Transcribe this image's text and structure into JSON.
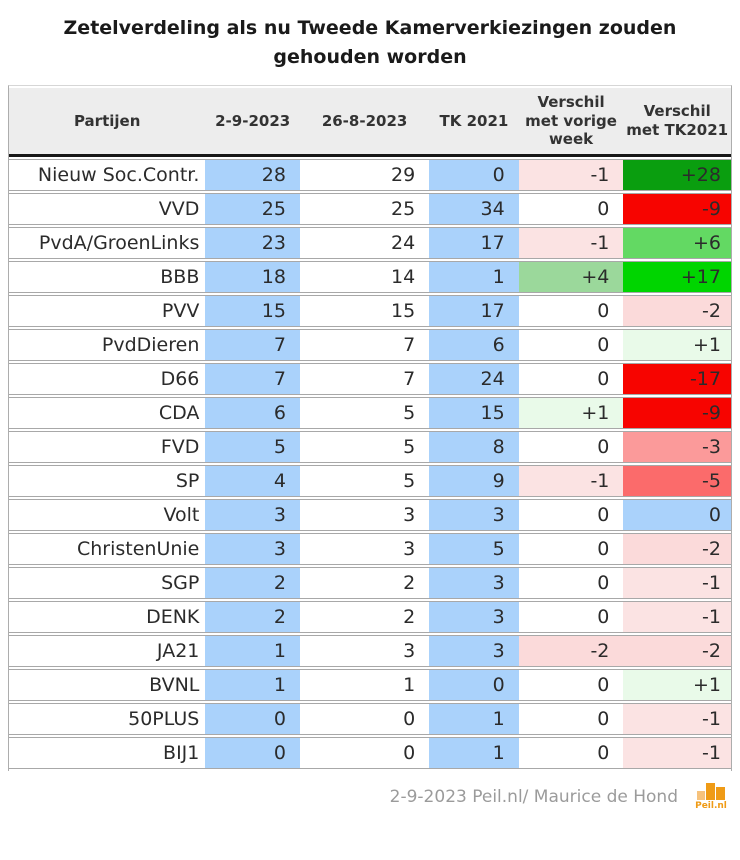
{
  "title": "Zetelverdeling als nu Tweede Kamerverkiezingen zouden gehouden worden",
  "colors": {
    "header_bg": "#ededed",
    "blue_cell": "#aad2fb",
    "green_dark": "#0a9e0f",
    "green_bright": "#00d500",
    "green_med": "#63d963",
    "green_light": "#9bd89b",
    "green_vlight": "#e9fae9",
    "pink_light": "#fbe3e3",
    "pink_med": "#fbdada",
    "salmon": "#fb9a9a",
    "red_med": "#fb6b6b",
    "red": "#f70400",
    "logo_orange": "#ef9b16",
    "logo_light_orange": "#f6c27c"
  },
  "table": {
    "columns": [
      "Partijen",
      "2-9-2023",
      "26-8-2023",
      "TK 2021",
      "Verschil met vorige week",
      "Verschil met TK2021"
    ],
    "rows": [
      {
        "party": "Nieuw Soc.Contr.",
        "seats_2_9": "28",
        "seats_26_8": "29",
        "seats_tk2021": "0",
        "diff_week": "-1",
        "diff_week_bg": "#fbe3e3",
        "diff_tk2021": "+28",
        "diff_tk2021_bg": "#0a9e0f"
      },
      {
        "party": "VVD",
        "seats_2_9": "25",
        "seats_26_8": "25",
        "seats_tk2021": "34",
        "diff_week": "0",
        "diff_week_bg": "#ffffff",
        "diff_tk2021": "-9",
        "diff_tk2021_bg": "#f70400"
      },
      {
        "party": "PvdA/GroenLinks",
        "seats_2_9": "23",
        "seats_26_8": "24",
        "seats_tk2021": "17",
        "diff_week": "-1",
        "diff_week_bg": "#fbe3e3",
        "diff_tk2021": "+6",
        "diff_tk2021_bg": "#63d963"
      },
      {
        "party": "BBB",
        "seats_2_9": "18",
        "seats_26_8": "14",
        "seats_tk2021": "1",
        "diff_week": "+4",
        "diff_week_bg": "#9bd89b",
        "diff_tk2021": "+17",
        "diff_tk2021_bg": "#00d500"
      },
      {
        "party": "PVV",
        "seats_2_9": "15",
        "seats_26_8": "15",
        "seats_tk2021": "17",
        "diff_week": "0",
        "diff_week_bg": "#ffffff",
        "diff_tk2021": "-2",
        "diff_tk2021_bg": "#fbdada"
      },
      {
        "party": "PvdDieren",
        "seats_2_9": "7",
        "seats_26_8": "7",
        "seats_tk2021": "6",
        "diff_week": "0",
        "diff_week_bg": "#ffffff",
        "diff_tk2021": "+1",
        "diff_tk2021_bg": "#e9fae9"
      },
      {
        "party": "D66",
        "seats_2_9": "7",
        "seats_26_8": "7",
        "seats_tk2021": "24",
        "diff_week": "0",
        "diff_week_bg": "#ffffff",
        "diff_tk2021": "-17",
        "diff_tk2021_bg": "#f70400"
      },
      {
        "party": "CDA",
        "seats_2_9": "6",
        "seats_26_8": "5",
        "seats_tk2021": "15",
        "diff_week": "+1",
        "diff_week_bg": "#e9fae9",
        "diff_tk2021": "-9",
        "diff_tk2021_bg": "#f70400"
      },
      {
        "party": "FVD",
        "seats_2_9": "5",
        "seats_26_8": "5",
        "seats_tk2021": "8",
        "diff_week": "0",
        "diff_week_bg": "#ffffff",
        "diff_tk2021": "-3",
        "diff_tk2021_bg": "#fb9a9a"
      },
      {
        "party": "SP",
        "seats_2_9": "4",
        "seats_26_8": "5",
        "seats_tk2021": "9",
        "diff_week": "-1",
        "diff_week_bg": "#fbe3e3",
        "diff_tk2021": "-5",
        "diff_tk2021_bg": "#fb6b6b"
      },
      {
        "party": "Volt",
        "seats_2_9": "3",
        "seats_26_8": "3",
        "seats_tk2021": "3",
        "diff_week": "0",
        "diff_week_bg": "#ffffff",
        "diff_tk2021": "0",
        "diff_tk2021_bg": "#aad2fb"
      },
      {
        "party": "ChristenUnie",
        "seats_2_9": "3",
        "seats_26_8": "3",
        "seats_tk2021": "5",
        "diff_week": "0",
        "diff_week_bg": "#ffffff",
        "diff_tk2021": "-2",
        "diff_tk2021_bg": "#fbdada"
      },
      {
        "party": "SGP",
        "seats_2_9": "2",
        "seats_26_8": "2",
        "seats_tk2021": "3",
        "diff_week": "0",
        "diff_week_bg": "#ffffff",
        "diff_tk2021": "-1",
        "diff_tk2021_bg": "#fbe3e3"
      },
      {
        "party": "DENK",
        "seats_2_9": "2",
        "seats_26_8": "2",
        "seats_tk2021": "3",
        "diff_week": "0",
        "diff_week_bg": "#ffffff",
        "diff_tk2021": "-1",
        "diff_tk2021_bg": "#fbe3e3"
      },
      {
        "party": "JA21",
        "seats_2_9": "1",
        "seats_26_8": "3",
        "seats_tk2021": "3",
        "diff_week": "-2",
        "diff_week_bg": "#fbdada",
        "diff_tk2021": "-2",
        "diff_tk2021_bg": "#fbdada"
      },
      {
        "party": "BVNL",
        "seats_2_9": "1",
        "seats_26_8": "1",
        "seats_tk2021": "0",
        "diff_week": "0",
        "diff_week_bg": "#ffffff",
        "diff_tk2021": "+1",
        "diff_tk2021_bg": "#e9fae9"
      },
      {
        "party": "50PLUS",
        "seats_2_9": "0",
        "seats_26_8": "0",
        "seats_tk2021": "1",
        "diff_week": "0",
        "diff_week_bg": "#ffffff",
        "diff_tk2021": "-1",
        "diff_tk2021_bg": "#fbe3e3"
      },
      {
        "party": "BIJ1",
        "seats_2_9": "0",
        "seats_26_8": "0",
        "seats_tk2021": "1",
        "diff_week": "0",
        "diff_week_bg": "#ffffff",
        "diff_tk2021": "-1",
        "diff_tk2021_bg": "#fbe3e3"
      }
    ]
  },
  "footer": {
    "credit": "2-9-2023 Peil.nl/ Maurice de Hond",
    "logo_label": "Peil.nl"
  },
  "chart_data": {
    "type": "table",
    "title": "Zetelverdeling als nu Tweede Kamerverkiezingen zouden gehouden worden",
    "columns": [
      "Partijen",
      "2-9-2023",
      "26-8-2023",
      "TK 2021",
      "Verschil met vorige week",
      "Verschil met TK2021"
    ],
    "rows": [
      [
        "Nieuw Soc.Contr.",
        28,
        29,
        0,
        -1,
        28
      ],
      [
        "VVD",
        25,
        25,
        34,
        0,
        -9
      ],
      [
        "PvdA/GroenLinks",
        23,
        24,
        17,
        -1,
        6
      ],
      [
        "BBB",
        18,
        14,
        1,
        4,
        17
      ],
      [
        "PVV",
        15,
        15,
        17,
        0,
        -2
      ],
      [
        "PvdDieren",
        7,
        7,
        6,
        0,
        1
      ],
      [
        "D66",
        7,
        7,
        24,
        0,
        -17
      ],
      [
        "CDA",
        6,
        5,
        15,
        1,
        -9
      ],
      [
        "FVD",
        5,
        5,
        8,
        0,
        -3
      ],
      [
        "SP",
        4,
        5,
        9,
        -1,
        -5
      ],
      [
        "Volt",
        3,
        3,
        3,
        0,
        0
      ],
      [
        "ChristenUnie",
        3,
        3,
        5,
        0,
        -2
      ],
      [
        "SGP",
        2,
        2,
        3,
        0,
        -1
      ],
      [
        "DENK",
        2,
        2,
        3,
        0,
        -1
      ],
      [
        "JA21",
        1,
        3,
        3,
        -2,
        -2
      ],
      [
        "BVNL",
        1,
        1,
        0,
        0,
        1
      ],
      [
        "50PLUS",
        0,
        0,
        1,
        0,
        -1
      ],
      [
        "BIJ1",
        0,
        0,
        1,
        0,
        -1
      ]
    ]
  }
}
